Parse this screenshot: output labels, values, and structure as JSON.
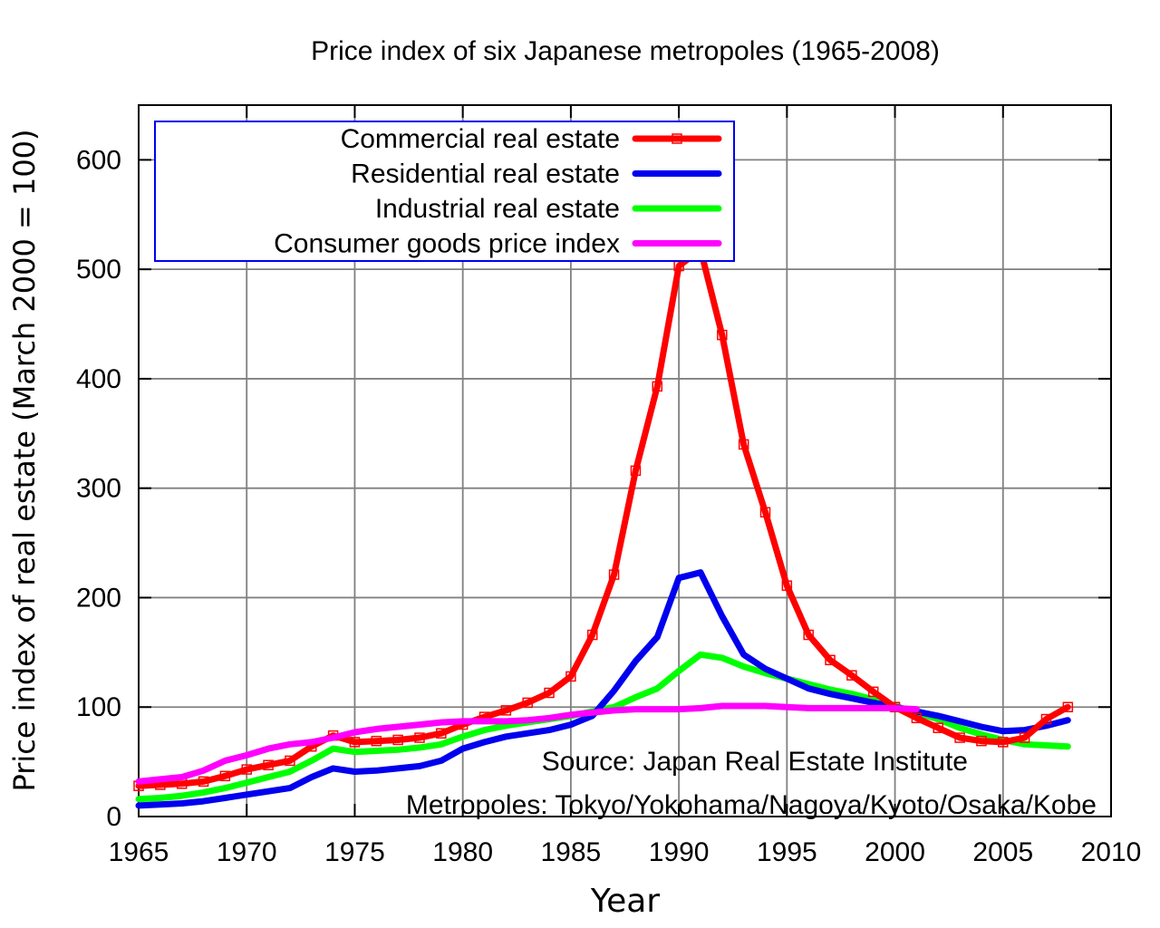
{
  "chart_data": {
    "type": "line",
    "title": "Price index of six Japanese metropoles (1965-2008)",
    "xlabel": "Year",
    "ylabel": "Price index of real estate (March 2000 = 100)",
    "xlim": [
      1965,
      2010
    ],
    "ylim": [
      0,
      650
    ],
    "xticks": [
      1965,
      1970,
      1975,
      1980,
      1985,
      1990,
      1995,
      2000,
      2005,
      2010
    ],
    "yticks": [
      0,
      100,
      200,
      300,
      400,
      500,
      600
    ],
    "grid": true,
    "legend_position": "top-left",
    "annotations": [
      "Source: Japan Real Estate Institute",
      "Metropoles: Tokyo/Yokohama/Nagoya/Kyoto/Osaka/Kobe"
    ],
    "series": [
      {
        "name": "Commercial real estate",
        "color": "#ff0000",
        "markers": true,
        "x": [
          1965,
          1966,
          1967,
          1968,
          1969,
          1970,
          1971,
          1972,
          1973,
          1974,
          1975,
          1976,
          1977,
          1978,
          1979,
          1980,
          1981,
          1982,
          1983,
          1984,
          1985,
          1986,
          1987,
          1988,
          1989,
          1990,
          1991,
          1992,
          1993,
          1994,
          1995,
          1996,
          1997,
          1998,
          1999,
          2000,
          2001,
          2002,
          2003,
          2004,
          2005,
          2006,
          2007,
          2008
        ],
        "y": [
          28,
          29,
          30,
          32,
          37,
          43,
          47,
          51,
          64,
          74,
          68,
          69,
          70,
          72,
          76,
          84,
          91,
          97,
          104,
          113,
          128,
          166,
          221,
          316,
          393,
          503,
          518,
          440,
          340,
          278,
          211,
          166,
          143,
          129,
          114,
          100,
          90,
          81,
          72,
          69,
          68,
          72,
          89,
          100
        ]
      },
      {
        "name": "Residential real estate",
        "color": "#0000ee",
        "markers": false,
        "x": [
          1965,
          1966,
          1967,
          1968,
          1969,
          1970,
          1971,
          1972,
          1973,
          1974,
          1975,
          1976,
          1977,
          1978,
          1979,
          1980,
          1981,
          1982,
          1983,
          1984,
          1985,
          1986,
          1987,
          1988,
          1989,
          1990,
          1991,
          1992,
          1993,
          1994,
          1995,
          1996,
          1997,
          1998,
          1999,
          2000,
          2001,
          2002,
          2003,
          2004,
          2005,
          2006,
          2007,
          2008
        ],
        "y": [
          10,
          11,
          12,
          14,
          17,
          20,
          23,
          26,
          36,
          44,
          41,
          42,
          44,
          46,
          51,
          62,
          68,
          73,
          76,
          79,
          84,
          92,
          115,
          142,
          164,
          218,
          223,
          183,
          148,
          135,
          126,
          117,
          112,
          108,
          104,
          100,
          96,
          92,
          87,
          82,
          78,
          79,
          83,
          88
        ]
      },
      {
        "name": "Industrial real estate",
        "color": "#00ff00",
        "markers": false,
        "x": [
          1965,
          1966,
          1967,
          1968,
          1969,
          1970,
          1971,
          1972,
          1973,
          1974,
          1975,
          1976,
          1977,
          1978,
          1979,
          1980,
          1981,
          1982,
          1983,
          1984,
          1985,
          1986,
          1987,
          1988,
          1989,
          1990,
          1991,
          1992,
          1993,
          1994,
          1995,
          1996,
          1997,
          1998,
          1999,
          2000,
          2001,
          2002,
          2003,
          2004,
          2005,
          2006,
          2007,
          2008
        ],
        "y": [
          16,
          17,
          19,
          22,
          26,
          31,
          36,
          41,
          51,
          62,
          59,
          60,
          61,
          63,
          66,
          73,
          79,
          83,
          86,
          89,
          92,
          96,
          100,
          109,
          117,
          133,
          148,
          145,
          137,
          131,
          126,
          121,
          116,
          112,
          107,
          101,
          95,
          89,
          81,
          75,
          70,
          66,
          65,
          64
        ]
      },
      {
        "name": "Consumer goods price index",
        "color": "#ff00ff",
        "markers": false,
        "x": [
          1965,
          1966,
          1967,
          1968,
          1969,
          1970,
          1971,
          1972,
          1973,
          1974,
          1975,
          1976,
          1977,
          1978,
          1979,
          1980,
          1981,
          1982,
          1983,
          1984,
          1985,
          1986,
          1987,
          1988,
          1989,
          1990,
          1991,
          1992,
          1993,
          1994,
          1995,
          1996,
          1997,
          1998,
          1999,
          2000,
          2001
        ],
        "y": [
          32,
          34,
          36,
          42,
          51,
          56,
          62,
          66,
          68,
          72,
          77,
          80,
          82,
          84,
          86,
          87,
          87,
          87,
          88,
          90,
          93,
          95,
          97,
          98,
          98,
          98,
          99,
          101,
          101,
          101,
          100,
          99,
          99,
          99,
          99,
          99,
          98
        ]
      }
    ]
  }
}
